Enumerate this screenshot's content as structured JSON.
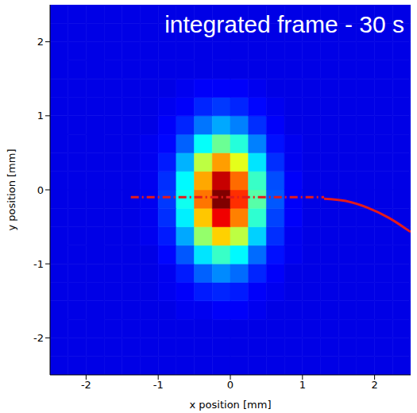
{
  "chart_data": {
    "type": "heatmap",
    "title": "integrated frame - 30 s",
    "xlabel": "x position [mm]",
    "ylabel": "y position [mm]",
    "xlim": [
      -2.5,
      2.5
    ],
    "ylim": [
      -2.5,
      2.5
    ],
    "xticks": [
      -2,
      -1,
      0,
      1,
      2
    ],
    "yticks": [
      -2,
      -1,
      0,
      1,
      2
    ],
    "color_range": [
      0,
      1
    ],
    "x_edges": [
      -2.5,
      -2.25,
      -2,
      -1.75,
      -1.5,
      -1.25,
      -1,
      -0.75,
      -0.5,
      -0.25,
      0,
      0.25,
      0.5,
      0.75,
      1,
      1.25,
      1.5,
      1.75,
      2,
      2.25,
      2.5
    ],
    "y_edges": [
      -2.5,
      -2.25,
      -2,
      -1.75,
      -1.5,
      -1.25,
      -1,
      -0.75,
      -0.5,
      -0.25,
      0,
      0.25,
      0.5,
      0.75,
      1,
      1.25,
      1.5,
      1.75,
      2,
      2.25,
      2.5
    ],
    "cells": [
      [
        0.1,
        0.1,
        0.1,
        0.1,
        0.1,
        0.1,
        0.1,
        0.1,
        0.1,
        0.1,
        0.1,
        0.1,
        0.1,
        0.1,
        0.1,
        0.1,
        0.1,
        0.1,
        0.1,
        0.1
      ],
      [
        0.1,
        0.1,
        0.1,
        0.1,
        0.1,
        0.1,
        0.1,
        0.1,
        0.1,
        0.1,
        0.1,
        0.1,
        0.1,
        0.1,
        0.1,
        0.1,
        0.1,
        0.1,
        0.1,
        0.1
      ],
      [
        0.1,
        0.1,
        0.1,
        0.1,
        0.1,
        0.1,
        0.1,
        0.1,
        0.1,
        0.1,
        0.1,
        0.1,
        0.1,
        0.1,
        0.1,
        0.1,
        0.1,
        0.1,
        0.1,
        0.1
      ],
      [
        0.1,
        0.1,
        0.1,
        0.1,
        0.1,
        0.1,
        0.1,
        0.11,
        0.11,
        0.12,
        0.12,
        0.11,
        0.1,
        0.1,
        0.1,
        0.1,
        0.1,
        0.1,
        0.1,
        0.1
      ],
      [
        0.1,
        0.1,
        0.1,
        0.1,
        0.1,
        0.1,
        0.11,
        0.12,
        0.15,
        0.16,
        0.15,
        0.12,
        0.11,
        0.1,
        0.1,
        0.1,
        0.1,
        0.1,
        0.1,
        0.1
      ],
      [
        0.1,
        0.1,
        0.1,
        0.1,
        0.1,
        0.1,
        0.11,
        0.15,
        0.22,
        0.26,
        0.23,
        0.16,
        0.12,
        0.1,
        0.1,
        0.1,
        0.1,
        0.1,
        0.1,
        0.1
      ],
      [
        0.1,
        0.1,
        0.1,
        0.1,
        0.1,
        0.1,
        0.13,
        0.21,
        0.35,
        0.43,
        0.37,
        0.23,
        0.14,
        0.11,
        0.1,
        0.1,
        0.1,
        0.1,
        0.1,
        0.1
      ],
      [
        0.1,
        0.1,
        0.1,
        0.1,
        0.1,
        0.11,
        0.15,
        0.29,
        0.52,
        0.67,
        0.56,
        0.33,
        0.17,
        0.11,
        0.1,
        0.1,
        0.1,
        0.1,
        0.1,
        0.1
      ],
      [
        0.1,
        0.1,
        0.1,
        0.1,
        0.1,
        0.11,
        0.17,
        0.36,
        0.68,
        0.89,
        0.75,
        0.42,
        0.19,
        0.12,
        0.1,
        0.1,
        0.1,
        0.1,
        0.1,
        0.1
      ],
      [
        0.1,
        0.1,
        0.1,
        0.1,
        0.1,
        0.11,
        0.18,
        0.39,
        0.76,
        1.0,
        0.83,
        0.46,
        0.21,
        0.12,
        0.1,
        0.1,
        0.1,
        0.1,
        0.1,
        0.1
      ],
      [
        0.1,
        0.1,
        0.1,
        0.1,
        0.1,
        0.11,
        0.17,
        0.37,
        0.71,
        0.93,
        0.77,
        0.43,
        0.2,
        0.12,
        0.1,
        0.1,
        0.1,
        0.1,
        0.1,
        0.1
      ],
      [
        0.1,
        0.1,
        0.1,
        0.1,
        0.1,
        0.11,
        0.15,
        0.3,
        0.56,
        0.72,
        0.6,
        0.35,
        0.17,
        0.11,
        0.1,
        0.1,
        0.1,
        0.1,
        0.1,
        0.1
      ],
      [
        0.1,
        0.1,
        0.1,
        0.1,
        0.1,
        0.11,
        0.13,
        0.22,
        0.38,
        0.48,
        0.41,
        0.25,
        0.14,
        0.11,
        0.1,
        0.1,
        0.1,
        0.1,
        0.1,
        0.1
      ],
      [
        0.1,
        0.1,
        0.1,
        0.1,
        0.1,
        0.1,
        0.12,
        0.16,
        0.24,
        0.29,
        0.25,
        0.17,
        0.12,
        0.1,
        0.1,
        0.1,
        0.1,
        0.1,
        0.1,
        0.1
      ],
      [
        0.1,
        0.1,
        0.1,
        0.1,
        0.1,
        0.1,
        0.11,
        0.12,
        0.16,
        0.18,
        0.16,
        0.13,
        0.11,
        0.1,
        0.1,
        0.1,
        0.1,
        0.1,
        0.1,
        0.1
      ],
      [
        0.1,
        0.1,
        0.1,
        0.1,
        0.1,
        0.1,
        0.1,
        0.11,
        0.12,
        0.12,
        0.12,
        0.11,
        0.1,
        0.1,
        0.1,
        0.1,
        0.1,
        0.1,
        0.1,
        0.1
      ],
      [
        0.1,
        0.1,
        0.1,
        0.1,
        0.1,
        0.1,
        0.1,
        0.1,
        0.1,
        0.1,
        0.1,
        0.1,
        0.1,
        0.1,
        0.1,
        0.1,
        0.1,
        0.1,
        0.1,
        0.1
      ],
      [
        0.1,
        0.1,
        0.1,
        0.1,
        0.1,
        0.1,
        0.1,
        0.1,
        0.1,
        0.1,
        0.1,
        0.1,
        0.1,
        0.1,
        0.1,
        0.1,
        0.1,
        0.1,
        0.1,
        0.1
      ],
      [
        0.1,
        0.1,
        0.1,
        0.1,
        0.1,
        0.1,
        0.1,
        0.1,
        0.1,
        0.1,
        0.1,
        0.1,
        0.1,
        0.1,
        0.1,
        0.1,
        0.1,
        0.1,
        0.1,
        0.1
      ],
      [
        0.1,
        0.1,
        0.1,
        0.1,
        0.1,
        0.1,
        0.1,
        0.1,
        0.1,
        0.1,
        0.1,
        0.1,
        0.1,
        0.1,
        0.1,
        0.1,
        0.1,
        0.1,
        0.1,
        0.1
      ]
    ],
    "lines": [
      {
        "x": [
          -1.38,
          1.3
        ],
        "y": [
          -0.1,
          -0.1
        ],
        "color": "#e41a1c",
        "line_style": "dashdot"
      },
      {
        "x": [
          1.3,
          1.6,
          1.9,
          2.2,
          2.5
        ],
        "y": [
          -0.12,
          -0.15,
          -0.24,
          -0.38,
          -0.57
        ],
        "color": "#e41a1c",
        "line_style": "solid"
      }
    ]
  }
}
